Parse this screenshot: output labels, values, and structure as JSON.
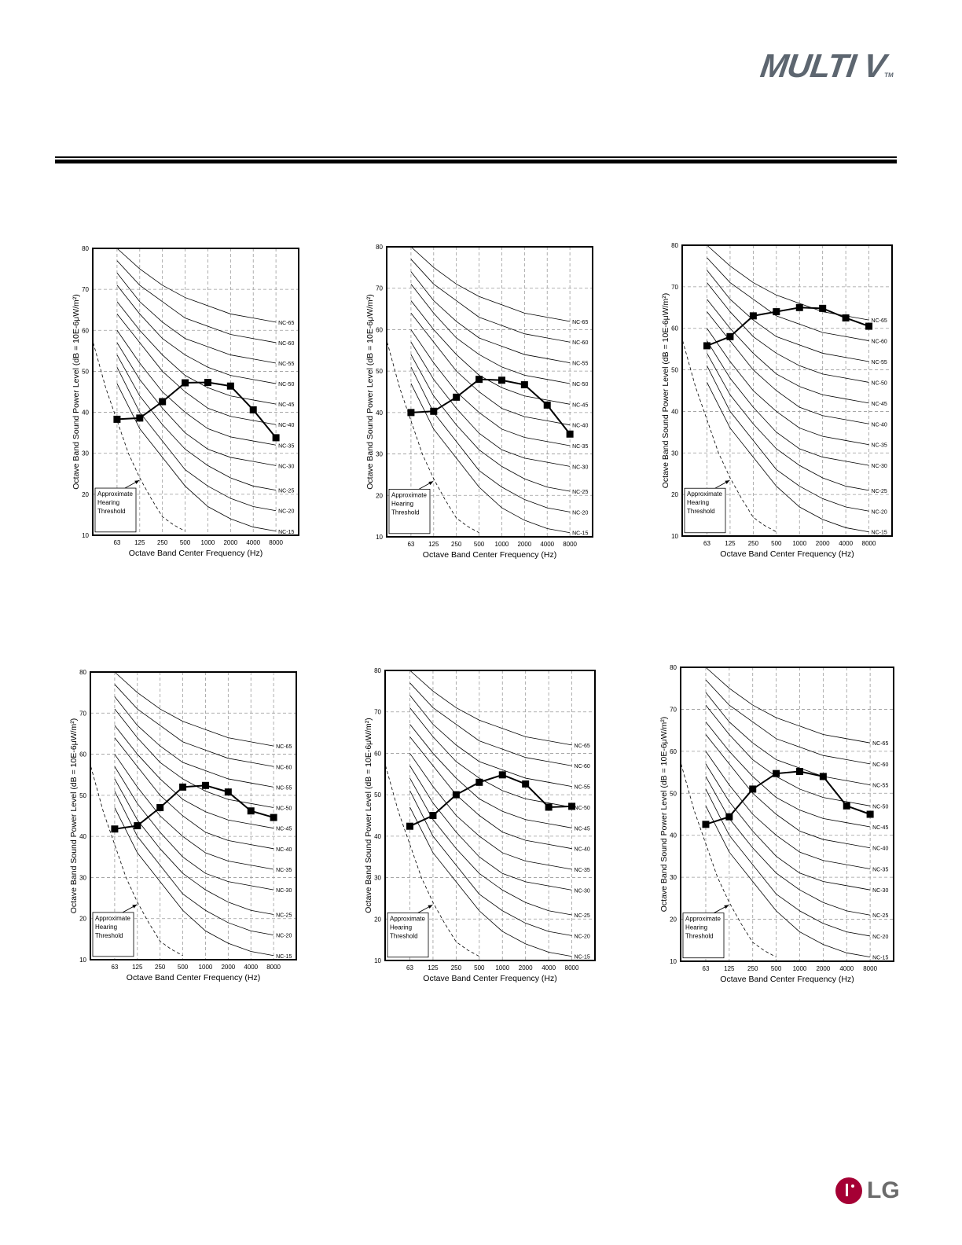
{
  "header": {
    "brand": "MULTI V",
    "trademark": "TM"
  },
  "footer": {
    "logo": "LG"
  },
  "colors": {
    "grid": "#9a9a9a",
    "ink": "#000000",
    "brand_gray": "#5d6670",
    "lg_red": "#a50034"
  },
  "chart_data": [
    {
      "type": "line",
      "xlabel": "Octave Band Center Frequency (Hz)",
      "ylabel": "Octave Band Sound Power Level (dB = 10E-6μW/m²)",
      "categories": [
        "63",
        "125",
        "250",
        "500",
        "1000",
        "2000",
        "4000",
        "8000"
      ],
      "ylim": [
        10,
        80
      ],
      "yticks": [
        "10",
        "20",
        "30",
        "40",
        "50",
        "60",
        "70",
        "80"
      ],
      "threshold_label": [
        "Approximate",
        "Hearing",
        "Threshold"
      ],
      "series": [
        {
          "name": "Sound Power",
          "values": [
            38.3,
            38.6,
            42.6,
            47.2,
            47.3,
            46.4,
            40.6,
            33.8
          ]
        }
      ]
    },
    {
      "type": "line",
      "xlabel": "Octave Band Center Frequency (Hz)",
      "ylabel": "Octave Band Sound Power Level (dB = 10E-6μW/m²)",
      "categories": [
        "63",
        "125",
        "250",
        "500",
        "1000",
        "2000",
        "4000",
        "8000"
      ],
      "ylim": [
        10,
        80
      ],
      "yticks": [
        "10",
        "20",
        "30",
        "40",
        "50",
        "60",
        "70",
        "80"
      ],
      "threshold_label": [
        "Approximate",
        "Hearing",
        "Threshold"
      ],
      "series": [
        {
          "name": "Sound Power",
          "values": [
            40.0,
            40.3,
            43.7,
            48.0,
            47.8,
            46.7,
            41.8,
            34.8
          ]
        }
      ]
    },
    {
      "type": "line",
      "xlabel": "Octave Band Center Frequency (Hz)",
      "ylabel": "Octave Band Sound Power Level (dB = 10E-6μW/m²)",
      "categories": [
        "63",
        "125",
        "250",
        "500",
        "1000",
        "2000",
        "4000",
        "8000"
      ],
      "ylim": [
        10,
        80
      ],
      "yticks": [
        "10",
        "20",
        "30",
        "40",
        "50",
        "60",
        "70",
        "80"
      ],
      "threshold_label": [
        "Approximate",
        "Hearing",
        "Threshold"
      ],
      "series": [
        {
          "name": "Sound Power",
          "values": [
            55.8,
            58.0,
            63.0,
            64.0,
            65.0,
            64.8,
            62.5,
            60.5
          ]
        }
      ]
    },
    {
      "type": "line",
      "xlabel": "Octave Band Center Frequency (Hz)",
      "ylabel": "Octave Band Sound Power Level (dB = 10E-6μW/m²)",
      "categories": [
        "63",
        "125",
        "250",
        "500",
        "1000",
        "2000",
        "4000",
        "8000"
      ],
      "ylim": [
        10,
        80
      ],
      "yticks": [
        "10",
        "20",
        "30",
        "40",
        "50",
        "60",
        "70",
        "80"
      ],
      "threshold_label": [
        "Approximate",
        "Hearing",
        "Threshold"
      ],
      "series": [
        {
          "name": "Sound Power",
          "values": [
            41.8,
            42.6,
            47.0,
            52.0,
            52.4,
            50.8,
            46.2,
            44.6
          ]
        }
      ]
    },
    {
      "type": "line",
      "xlabel": "Octave Band Center Frequency (Hz)",
      "ylabel": "Octave Band Sound Power Level (dB = 10E-6μW/m²)",
      "categories": [
        "63",
        "125",
        "250",
        "500",
        "1000",
        "2000",
        "4000",
        "8000"
      ],
      "ylim": [
        10,
        80
      ],
      "yticks": [
        "10",
        "20",
        "30",
        "40",
        "50",
        "60",
        "70",
        "80"
      ],
      "threshold_label": [
        "Approximate",
        "Hearing",
        "Threshold"
      ],
      "series": [
        {
          "name": "Sound Power",
          "values": [
            42.4,
            45.0,
            50.0,
            53.0,
            54.8,
            52.6,
            47.0,
            47.2
          ]
        }
      ]
    },
    {
      "type": "line",
      "xlabel": "Octave Band Center Frequency (Hz)",
      "ylabel": "Octave Band Sound Power Level (dB = 10E-6μW/m²)",
      "categories": [
        "63",
        "125",
        "250",
        "500",
        "1000",
        "2000",
        "4000",
        "8000"
      ],
      "ylim": [
        10,
        80
      ],
      "yticks": [
        "10",
        "20",
        "30",
        "40",
        "50",
        "60",
        "70",
        "80"
      ],
      "threshold_label": [
        "Approximate",
        "Hearing",
        "Threshold"
      ],
      "series": [
        {
          "name": "Sound Power",
          "values": [
            42.6,
            44.4,
            51.0,
            54.7,
            55.2,
            54.0,
            47.0,
            45.0
          ]
        }
      ]
    }
  ],
  "nc_curves": [
    {
      "name": "NC-65",
      "values": [
        80,
        75,
        71,
        68,
        66,
        64,
        63,
        62
      ]
    },
    {
      "name": "NC-60",
      "values": [
        77,
        71,
        67,
        63,
        61,
        59,
        58,
        57
      ]
    },
    {
      "name": "NC-55",
      "values": [
        74,
        67,
        62,
        58,
        56,
        54,
        53,
        52
      ]
    },
    {
      "name": "NC-50",
      "values": [
        71,
        64,
        58,
        54,
        51,
        49,
        48,
        47
      ]
    },
    {
      "name": "NC-45",
      "values": [
        67,
        60,
        54,
        49,
        46,
        44,
        43,
        42
      ]
    },
    {
      "name": "NC-40",
      "values": [
        64,
        57,
        50,
        45,
        41,
        39,
        38,
        37
      ]
    },
    {
      "name": "NC-35",
      "values": [
        60,
        52,
        45,
        40,
        36,
        34,
        33,
        32
      ]
    },
    {
      "name": "NC-30",
      "values": [
        57,
        48,
        41,
        35,
        31,
        29,
        28,
        27
      ]
    },
    {
      "name": "NC-25",
      "values": [
        54,
        44,
        37,
        31,
        27,
        24,
        22,
        21
      ]
    },
    {
      "name": "NC-20",
      "values": [
        51,
        40,
        33,
        26,
        22,
        19,
        17,
        16
      ]
    },
    {
      "name": "NC-15",
      "values": [
        47,
        36,
        29,
        22,
        17,
        14,
        12,
        11
      ]
    }
  ],
  "hearing_threshold": {
    "x_index": [
      -1.05,
      -0.5,
      0,
      0.5,
      1,
      1.5,
      2,
      2.5,
      3
    ],
    "values": [
      57,
      46,
      38,
      30,
      24,
      19,
      14.5,
      12.5,
      11
    ]
  }
}
